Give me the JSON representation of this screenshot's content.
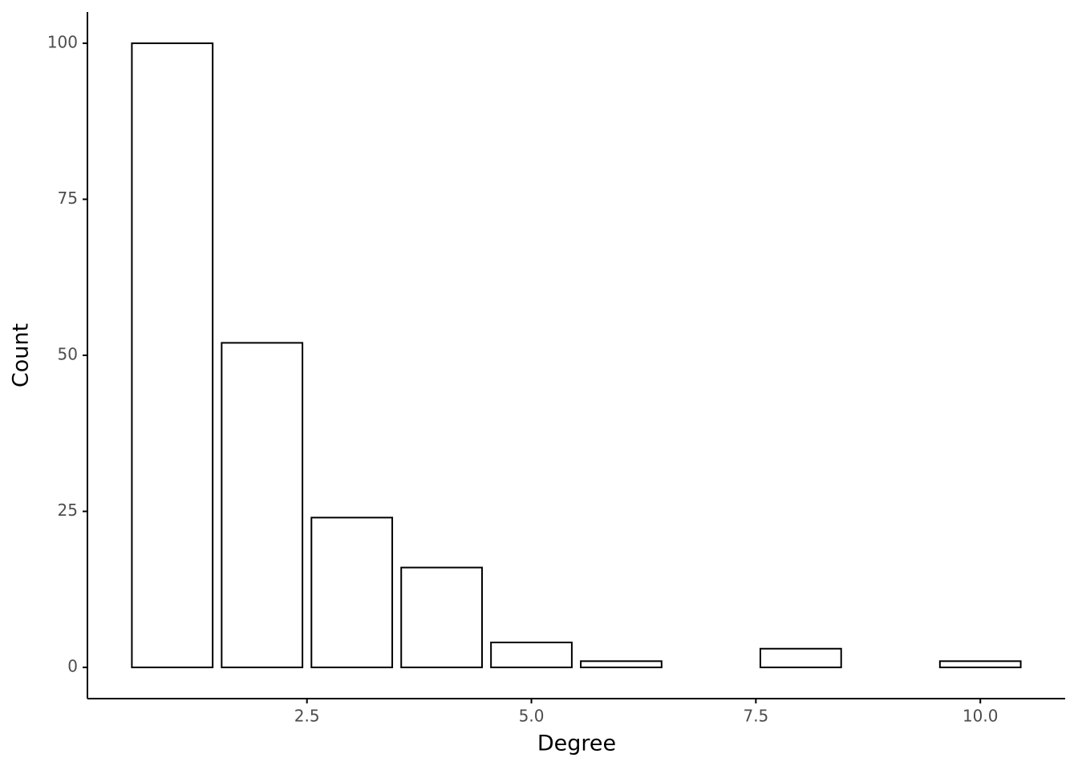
{
  "chart_data": {
    "type": "bar",
    "x_label": "Degree",
    "y_label": "Count",
    "x": [
      1,
      2,
      3,
      4,
      5,
      6,
      8,
      10
    ],
    "values": [
      100,
      52,
      24,
      16,
      4,
      1,
      3,
      1
    ],
    "color": "#ffffff",
    "edge_color": "#000000",
    "xlim": [
      0.055,
      10.945
    ],
    "xticks": [
      2.5,
      {
        "value": 5,
        "label": "5.0"
      },
      7.5,
      {
        "value": 10,
        "label": "10.0"
      }
    ],
    "ylim": [
      -5,
      105
    ],
    "yticks": [
      0,
      25,
      50,
      75,
      100
    ],
    "grid": false
  }
}
